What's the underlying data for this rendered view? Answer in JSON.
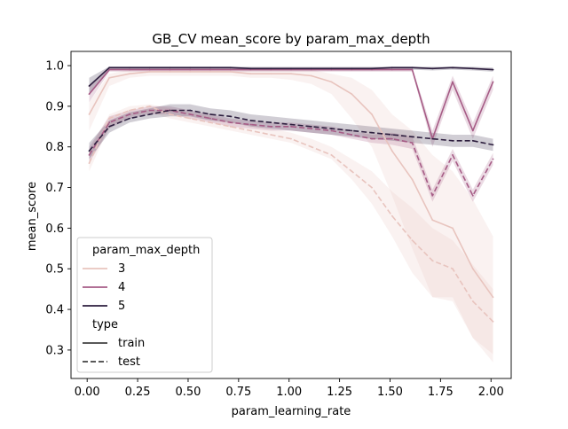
{
  "colors": {
    "depth_3": "#e8c4be",
    "depth_4": "#a65c86",
    "depth_5": "#2d1e3e",
    "legend_line_dark": "#222222",
    "band_opacity": 0.22
  },
  "chart_data": {
    "type": "line",
    "title": "GB_CV mean_score by param_max_depth",
    "xlabel": "param_learning_rate",
    "ylabel": "mean_score",
    "xlim": [
      -0.08,
      2.1
    ],
    "ylim": [
      0.23,
      1.035
    ],
    "xticks": [
      0.0,
      0.25,
      0.5,
      0.75,
      1.0,
      1.25,
      1.5,
      1.75,
      2.0
    ],
    "xtick_labels": [
      "0.00",
      "0.25",
      "0.50",
      "0.75",
      "1.00",
      "1.25",
      "1.50",
      "1.75",
      "2.00"
    ],
    "yticks": [
      0.3,
      0.4,
      0.5,
      0.6,
      0.7,
      0.8,
      0.9,
      1.0
    ],
    "ytick_labels": [
      "0.3",
      "0.4",
      "0.5",
      "0.6",
      "0.7",
      "0.8",
      "0.9",
      "1.0"
    ],
    "grid": false,
    "legend": {
      "position": "lower-left",
      "hue_title": "param_max_depth",
      "hue_entries": [
        {
          "label": "3",
          "color_key": "depth_3"
        },
        {
          "label": "4",
          "color_key": "depth_4"
        },
        {
          "label": "5",
          "color_key": "depth_5"
        }
      ],
      "style_title": "type",
      "style_entries": [
        {
          "label": "train",
          "dash": "solid"
        },
        {
          "label": "test",
          "dash": "dashed"
        }
      ]
    },
    "x": [
      0.01,
      0.11,
      0.21,
      0.31,
      0.41,
      0.51,
      0.61,
      0.71,
      0.81,
      0.91,
      1.01,
      1.11,
      1.21,
      1.31,
      1.41,
      1.51,
      1.61,
      1.71,
      1.81,
      1.91,
      2.01
    ],
    "series": [
      {
        "depth": "3",
        "type": "train",
        "color_key": "depth_3",
        "dash": "solid",
        "values": [
          0.88,
          0.97,
          0.98,
          0.985,
          0.985,
          0.985,
          0.985,
          0.985,
          0.98,
          0.98,
          0.98,
          0.975,
          0.96,
          0.93,
          0.88,
          0.79,
          0.72,
          0.62,
          0.6,
          0.5,
          0.43
        ],
        "lower": [
          0.84,
          0.95,
          0.97,
          0.975,
          0.975,
          0.975,
          0.975,
          0.975,
          0.97,
          0.97,
          0.965,
          0.955,
          0.93,
          0.87,
          0.8,
          0.68,
          0.55,
          0.43,
          0.42,
          0.33,
          0.27
        ],
        "upper": [
          0.91,
          0.98,
          0.99,
          0.99,
          0.99,
          0.99,
          0.99,
          0.99,
          0.99,
          0.99,
          0.99,
          0.99,
          0.98,
          0.97,
          0.94,
          0.88,
          0.84,
          0.78,
          0.74,
          0.67,
          0.58
        ]
      },
      {
        "depth": "3",
        "type": "test",
        "color_key": "depth_3",
        "dash": "dashed",
        "values": [
          0.76,
          0.87,
          0.89,
          0.9,
          0.88,
          0.87,
          0.86,
          0.85,
          0.84,
          0.83,
          0.82,
          0.8,
          0.78,
          0.74,
          0.7,
          0.63,
          0.57,
          0.52,
          0.5,
          0.42,
          0.37
        ],
        "lower": [
          0.74,
          0.85,
          0.875,
          0.885,
          0.87,
          0.86,
          0.85,
          0.84,
          0.83,
          0.82,
          0.81,
          0.79,
          0.77,
          0.72,
          0.66,
          0.58,
          0.49,
          0.43,
          0.43,
          0.33,
          0.29
        ],
        "upper": [
          0.79,
          0.88,
          0.9,
          0.905,
          0.895,
          0.885,
          0.875,
          0.865,
          0.855,
          0.845,
          0.835,
          0.82,
          0.8,
          0.77,
          0.74,
          0.69,
          0.65,
          0.6,
          0.57,
          0.51,
          0.45
        ]
      },
      {
        "depth": "4",
        "type": "train",
        "color_key": "depth_4",
        "dash": "solid",
        "values": [
          0.93,
          0.99,
          0.99,
          0.99,
          0.99,
          0.99,
          0.99,
          0.99,
          0.99,
          0.99,
          0.99,
          0.99,
          0.99,
          0.99,
          0.99,
          0.99,
          0.99,
          0.82,
          0.96,
          0.84,
          0.96
        ],
        "lower": [
          0.91,
          0.985,
          0.985,
          0.985,
          0.985,
          0.985,
          0.985,
          0.985,
          0.985,
          0.985,
          0.985,
          0.985,
          0.985,
          0.985,
          0.985,
          0.985,
          0.985,
          0.8,
          0.94,
          0.82,
          0.94
        ],
        "upper": [
          0.95,
          0.995,
          0.995,
          0.995,
          0.995,
          0.995,
          0.995,
          0.995,
          0.995,
          0.995,
          0.995,
          0.995,
          0.995,
          0.995,
          0.995,
          0.995,
          0.995,
          0.84,
          0.975,
          0.86,
          0.975
        ]
      },
      {
        "depth": "4",
        "type": "test",
        "color_key": "depth_4",
        "dash": "dashed",
        "values": [
          0.78,
          0.86,
          0.88,
          0.89,
          0.89,
          0.88,
          0.87,
          0.86,
          0.855,
          0.85,
          0.85,
          0.845,
          0.84,
          0.83,
          0.82,
          0.82,
          0.81,
          0.68,
          0.78,
          0.68,
          0.77
        ],
        "lower": [
          0.76,
          0.845,
          0.87,
          0.88,
          0.88,
          0.87,
          0.86,
          0.85,
          0.845,
          0.84,
          0.84,
          0.835,
          0.83,
          0.82,
          0.81,
          0.805,
          0.795,
          0.665,
          0.765,
          0.665,
          0.755
        ],
        "upper": [
          0.8,
          0.875,
          0.89,
          0.9,
          0.9,
          0.89,
          0.88,
          0.87,
          0.865,
          0.86,
          0.86,
          0.855,
          0.85,
          0.84,
          0.83,
          0.835,
          0.825,
          0.695,
          0.795,
          0.695,
          0.785
        ]
      },
      {
        "depth": "5",
        "type": "train",
        "color_key": "depth_5",
        "dash": "solid",
        "values": [
          0.95,
          0.995,
          0.995,
          0.995,
          0.995,
          0.995,
          0.995,
          0.995,
          0.993,
          0.993,
          0.993,
          0.993,
          0.993,
          0.993,
          0.993,
          0.995,
          0.995,
          0.993,
          0.995,
          0.993,
          0.99
        ],
        "lower": [
          0.93,
          0.99,
          0.99,
          0.99,
          0.99,
          0.99,
          0.99,
          0.99,
          0.988,
          0.988,
          0.988,
          0.988,
          0.988,
          0.988,
          0.988,
          0.99,
          0.99,
          0.988,
          0.99,
          0.988,
          0.985
        ],
        "upper": [
          0.97,
          0.998,
          0.998,
          0.998,
          0.998,
          0.998,
          0.998,
          0.998,
          0.997,
          0.997,
          0.997,
          0.997,
          0.997,
          0.997,
          0.997,
          0.998,
          0.998,
          0.997,
          0.998,
          0.997,
          0.995
        ]
      },
      {
        "depth": "5",
        "type": "test",
        "color_key": "depth_5",
        "dash": "dashed",
        "values": [
          0.79,
          0.85,
          0.87,
          0.88,
          0.89,
          0.89,
          0.88,
          0.875,
          0.865,
          0.86,
          0.855,
          0.85,
          0.845,
          0.84,
          0.835,
          0.83,
          0.825,
          0.82,
          0.815,
          0.815,
          0.805
        ],
        "lower": [
          0.77,
          0.835,
          0.86,
          0.87,
          0.875,
          0.875,
          0.865,
          0.86,
          0.85,
          0.845,
          0.84,
          0.835,
          0.83,
          0.825,
          0.82,
          0.815,
          0.81,
          0.805,
          0.8,
          0.8,
          0.79
        ],
        "upper": [
          0.81,
          0.865,
          0.885,
          0.895,
          0.905,
          0.905,
          0.895,
          0.89,
          0.88,
          0.875,
          0.87,
          0.865,
          0.86,
          0.855,
          0.85,
          0.845,
          0.84,
          0.835,
          0.83,
          0.83,
          0.82
        ]
      }
    ]
  }
}
